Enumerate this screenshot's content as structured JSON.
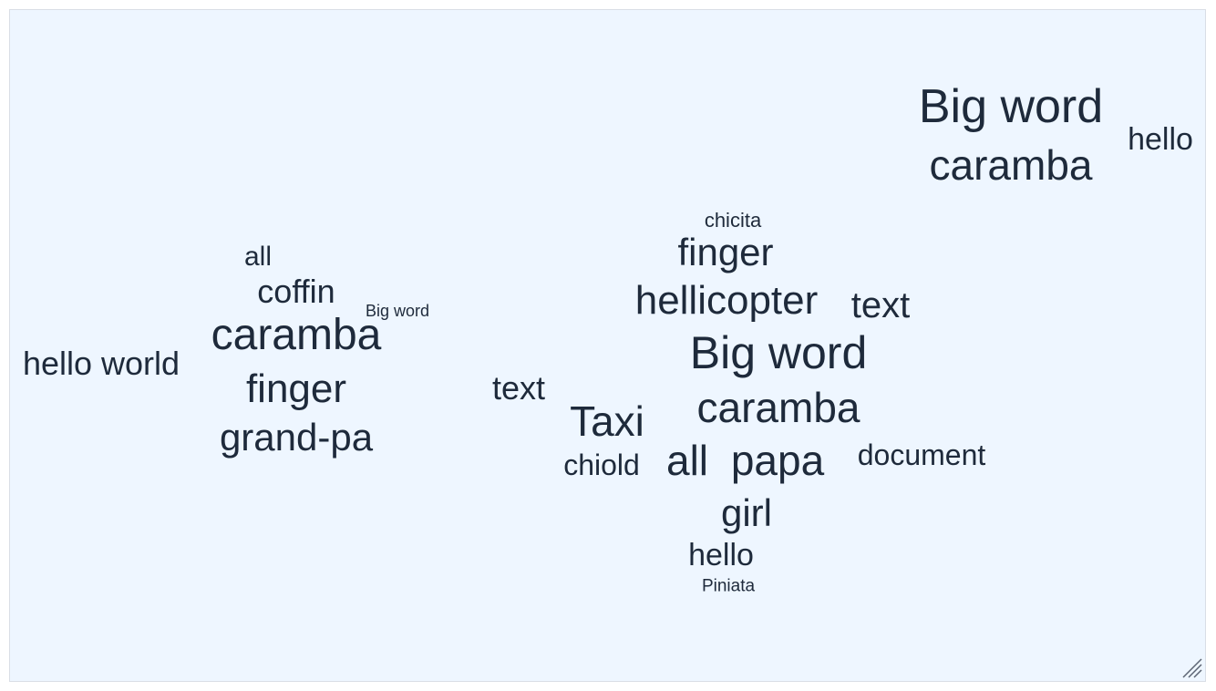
{
  "words": [
    {
      "text": "Big word"
    },
    {
      "text": "caramba"
    },
    {
      "text": "hello"
    },
    {
      "text": "chicita"
    },
    {
      "text": "finger"
    },
    {
      "text": "hellicopter"
    },
    {
      "text": "text"
    },
    {
      "text": "Big word"
    },
    {
      "text": "caramba"
    },
    {
      "text": "Taxi"
    },
    {
      "text": "chiold"
    },
    {
      "text": "all"
    },
    {
      "text": "papa"
    },
    {
      "text": "document"
    },
    {
      "text": "girl"
    },
    {
      "text": "hello"
    },
    {
      "text": "Piniata"
    },
    {
      "text": "text"
    },
    {
      "text": "all"
    },
    {
      "text": "coffin"
    },
    {
      "text": "Big word"
    },
    {
      "text": "caramba"
    },
    {
      "text": "hello world"
    },
    {
      "text": "finger"
    },
    {
      "text": "grand-pa"
    }
  ],
  "colors": {
    "panel_bg": "#eef6ff",
    "panel_border": "#d9dee6",
    "word_color": "#1e2a3b"
  },
  "icons": {
    "resize": "resize-handle-icon"
  }
}
